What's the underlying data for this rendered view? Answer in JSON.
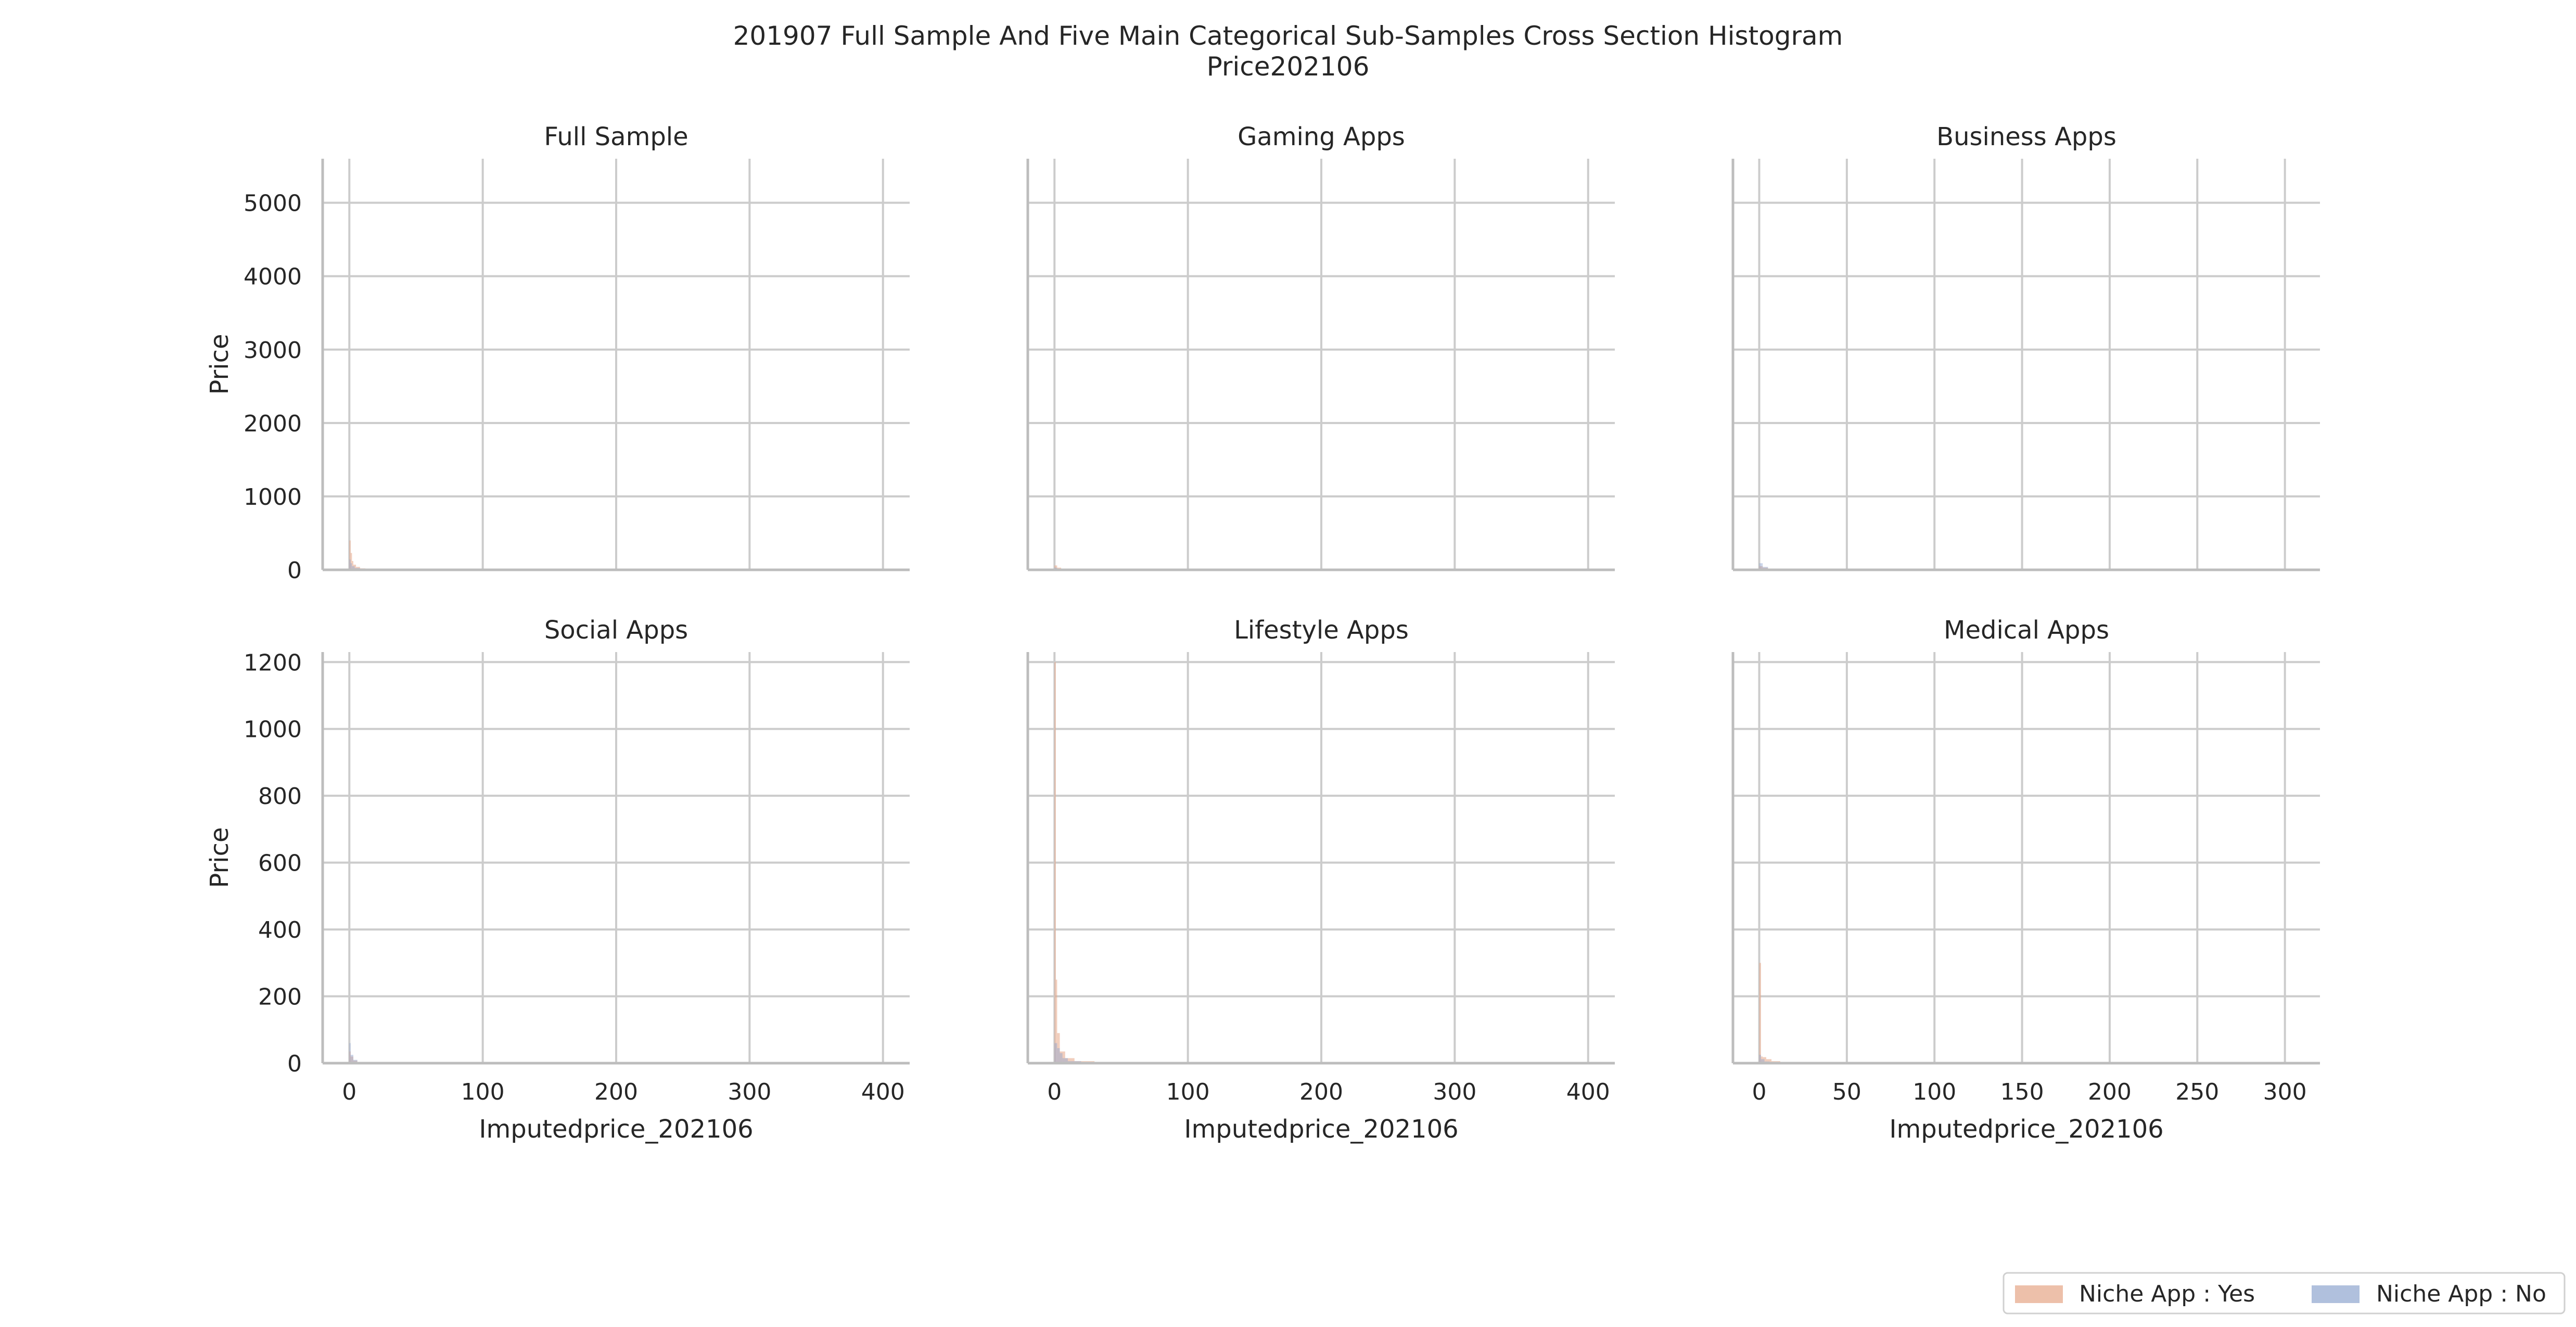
{
  "figure": {
    "title_line1": "201907 Full Sample And Five Main Categorical Sub-Samples Cross Section Histogram",
    "title_line2": "Price202106"
  },
  "colors": {
    "yes": "#e6a586",
    "no": "#8ea5cf",
    "grid": "#cccccc",
    "spine": "#bdbdbd"
  },
  "legend": {
    "items": [
      "Niche App : Yes",
      "Niche App : No"
    ],
    "placement": "lower-right"
  },
  "chart_data": [
    {
      "type": "histogram",
      "title": "Full Sample",
      "row": 0,
      "col": 0,
      "xlabel": "",
      "ylabel": "Price",
      "xlim": [
        -20,
        420
      ],
      "ylim": [
        0,
        5600
      ],
      "xticks": [
        0,
        100,
        200,
        300,
        400
      ],
      "yticks": [
        0,
        1000,
        2000,
        3000,
        4000,
        5000
      ],
      "show_xticks": false,
      "show_yticks": true,
      "grid": true,
      "series": [
        {
          "name": "Niche App : Yes",
          "bins": [
            [
              0,
              1,
              400
            ],
            [
              1,
              2,
              230
            ],
            [
              2,
              3,
              120
            ],
            [
              3,
              5,
              70
            ],
            [
              5,
              8,
              40
            ],
            [
              8,
              12,
              20
            ],
            [
              12,
              20,
              10
            ]
          ]
        },
        {
          "name": "Niche App : No",
          "bins": [
            [
              0,
              1,
              140
            ],
            [
              1,
              2,
              90
            ],
            [
              2,
              4,
              50
            ],
            [
              4,
              8,
              25
            ],
            [
              8,
              15,
              10
            ]
          ]
        }
      ]
    },
    {
      "type": "histogram",
      "title": "Gaming Apps",
      "row": 0,
      "col": 1,
      "xlabel": "",
      "ylabel": "",
      "xlim": [
        -20,
        420
      ],
      "ylim": [
        0,
        5600
      ],
      "xticks": [
        0,
        100,
        200,
        300,
        400
      ],
      "yticks": [
        0,
        1000,
        2000,
        3000,
        4000,
        5000
      ],
      "show_xticks": false,
      "show_yticks": false,
      "grid": true,
      "series": [
        {
          "name": "Niche App : Yes",
          "bins": [
            [
              0,
              2,
              60
            ],
            [
              2,
              5,
              30
            ],
            [
              5,
              10,
              15
            ]
          ]
        },
        {
          "name": "Niche App : No",
          "bins": [
            [
              0,
              2,
              30
            ],
            [
              2,
              6,
              15
            ],
            [
              6,
              12,
              8
            ]
          ]
        }
      ]
    },
    {
      "type": "histogram",
      "title": "Business Apps",
      "row": 0,
      "col": 2,
      "xlabel": "",
      "ylabel": "",
      "xlim": [
        -15,
        320
      ],
      "ylim": [
        0,
        5600
      ],
      "xticks": [
        0,
        50,
        100,
        150,
        200,
        250,
        300
      ],
      "yticks": [
        0,
        1000,
        2000,
        3000,
        4000,
        5000
      ],
      "show_xticks": false,
      "show_yticks": false,
      "grid": true,
      "series": [
        {
          "name": "Niche App : Yes",
          "bins": [
            [
              0,
              2,
              50
            ],
            [
              2,
              5,
              30
            ],
            [
              5,
              10,
              10
            ]
          ]
        },
        {
          "name": "Niche App : No",
          "bins": [
            [
              0,
              2,
              90
            ],
            [
              2,
              5,
              40
            ],
            [
              5,
              10,
              15
            ]
          ]
        }
      ]
    },
    {
      "type": "histogram",
      "title": "Social Apps",
      "row": 1,
      "col": 0,
      "xlabel": "Imputedprice_202106",
      "ylabel": "Price",
      "xlim": [
        -20,
        420
      ],
      "ylim": [
        0,
        1230
      ],
      "xticks": [
        0,
        100,
        200,
        300,
        400
      ],
      "yticks": [
        0,
        200,
        400,
        600,
        800,
        1000,
        1200
      ],
      "show_xticks": true,
      "show_yticks": true,
      "grid": true,
      "series": [
        {
          "name": "Niche App : Yes",
          "bins": [
            [
              0,
              1,
              35
            ],
            [
              1,
              3,
              20
            ],
            [
              3,
              6,
              8
            ]
          ]
        },
        {
          "name": "Niche App : No",
          "bins": [
            [
              0,
              1,
              60
            ],
            [
              1,
              3,
              25
            ],
            [
              3,
              6,
              10
            ]
          ]
        }
      ]
    },
    {
      "type": "histogram",
      "title": "Lifestyle Apps",
      "row": 1,
      "col": 1,
      "xlabel": "Imputedprice_202106",
      "ylabel": "",
      "xlim": [
        -20,
        420
      ],
      "ylim": [
        0,
        1230
      ],
      "xticks": [
        0,
        100,
        200,
        300,
        400
      ],
      "yticks": [
        0,
        200,
        400,
        600,
        800,
        1000,
        1200
      ],
      "show_xticks": true,
      "show_yticks": false,
      "grid": true,
      "series": [
        {
          "name": "Niche App : Yes",
          "bins": [
            [
              0,
              1,
              1200
            ],
            [
              1,
              2,
              250
            ],
            [
              2,
              4,
              90
            ],
            [
              4,
              8,
              35
            ],
            [
              8,
              15,
              15
            ],
            [
              15,
              30,
              6
            ]
          ]
        },
        {
          "name": "Niche App : No",
          "bins": [
            [
              0,
              2,
              60
            ],
            [
              2,
              4,
              45
            ],
            [
              4,
              6,
              30
            ],
            [
              6,
              10,
              15
            ],
            [
              10,
              20,
              6
            ]
          ]
        }
      ]
    },
    {
      "type": "histogram",
      "title": "Medical Apps",
      "row": 1,
      "col": 2,
      "xlabel": "Imputedprice_202106",
      "ylabel": "",
      "xlim": [
        -15,
        320
      ],
      "ylim": [
        0,
        1230
      ],
      "xticks": [
        0,
        50,
        100,
        150,
        200,
        250,
        300
      ],
      "yticks": [
        0,
        200,
        400,
        600,
        800,
        1000,
        1200
      ],
      "show_xticks": true,
      "show_yticks": false,
      "grid": true,
      "series": [
        {
          "name": "Niche App : Yes",
          "bins": [
            [
              0,
              1,
              300
            ],
            [
              1,
              2,
              20
            ],
            [
              2,
              4,
              18
            ],
            [
              4,
              7,
              12
            ],
            [
              7,
              12,
              6
            ],
            [
              12,
              20,
              3
            ]
          ]
        },
        {
          "name": "Niche App : No",
          "bins": [
            [
              0,
              1,
              25
            ],
            [
              1,
              3,
              12
            ],
            [
              3,
              6,
              5
            ]
          ]
        }
      ]
    }
  ]
}
